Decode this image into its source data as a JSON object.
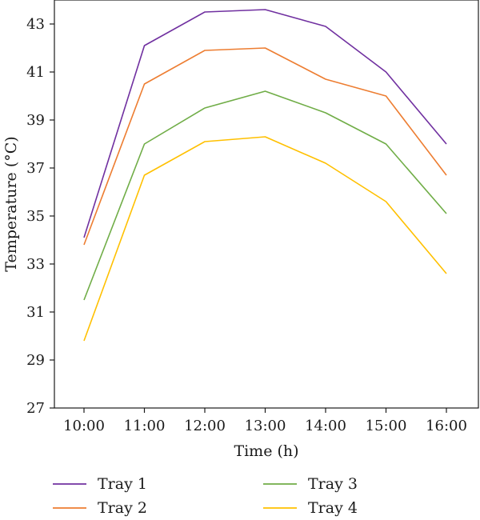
{
  "chart_data": {
    "type": "line",
    "x": [
      "10:00",
      "11:00",
      "12:00",
      "13:00",
      "14:00",
      "15:00",
      "16:00"
    ],
    "series": [
      {
        "name": "Tray 1",
        "color": "#7030a0",
        "values": [
          34.1,
          42.1,
          43.5,
          43.6,
          42.9,
          41.0,
          38.0
        ]
      },
      {
        "name": "Tray 2",
        "color": "#ed7d31",
        "values": [
          33.8,
          40.5,
          41.9,
          42.0,
          40.7,
          40.0,
          36.7
        ]
      },
      {
        "name": "Tray 3",
        "color": "#70ad47",
        "values": [
          31.5,
          38.0,
          39.5,
          40.2,
          39.3,
          38.0,
          35.1
        ]
      },
      {
        "name": "Tray 4",
        "color": "#ffc000",
        "values": [
          29.8,
          36.7,
          38.1,
          38.3,
          37.2,
          35.6,
          32.6
        ]
      }
    ],
    "xlabel": "Time (h)",
    "ylabel": "Temperature (°C)",
    "ylim": [
      27,
      44
    ],
    "yticks": [
      27,
      29,
      31,
      33,
      35,
      37,
      39,
      41,
      43
    ],
    "grid": false,
    "legend_position": "bottom"
  }
}
